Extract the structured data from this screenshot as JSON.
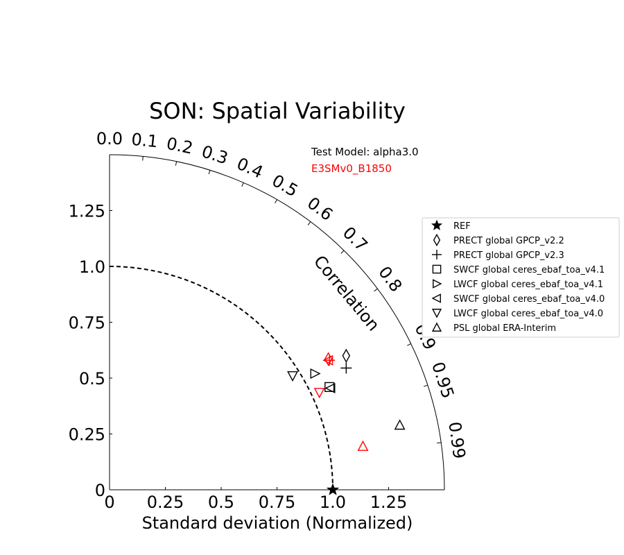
{
  "chart_data": {
    "type": "scatter",
    "title": "SON: Spatial Variability",
    "xlabel": "Standard deviation (Normalized)",
    "annotation_test_model": "Test Model: alpha3.0",
    "annotation_ref_model": "E3SMv0_B1850",
    "ref_model_color": "#ff0000",
    "arc_label": "Correlation",
    "std_max": 1.5,
    "ref_std": 1.0,
    "std_ticks": [
      "0",
      "0.25",
      "0.5",
      "0.75",
      "1.0",
      "1.25"
    ],
    "corr_ticks": [
      "0.0",
      "0.1",
      "0.2",
      "0.3",
      "0.4",
      "0.5",
      "0.6",
      "0.7",
      "0.8",
      "0.9",
      "0.95",
      "0.99"
    ],
    "legend_placement": "right",
    "legend": [
      {
        "label": "REF",
        "marker": "star"
      },
      {
        "label": "PRECT global GPCP_v2.2",
        "marker": "diamond"
      },
      {
        "label": "PRECT global GPCP_v2.3",
        "marker": "plus"
      },
      {
        "label": "SWCF global ceres_ebaf_toa_v4.1",
        "marker": "square"
      },
      {
        "label": "LWCF global ceres_ebaf_toa_v4.1",
        "marker": "triangle-right"
      },
      {
        "label": "SWCF global ceres_ebaf_toa_v4.0",
        "marker": "triangle-left"
      },
      {
        "label": "LWCF global ceres_ebaf_toa_v4.0",
        "marker": "triangle-down"
      },
      {
        "label": "PSL global ERA-Interim",
        "marker": "triangle-up"
      }
    ],
    "series": [
      {
        "model": "test",
        "color": "#000000",
        "points": [
          {
            "marker": "star",
            "x": 1.0,
            "y": 0.0
          },
          {
            "marker": "diamond",
            "x": 1.06,
            "y": 0.6
          },
          {
            "marker": "plus",
            "x": 1.06,
            "y": 0.545
          },
          {
            "marker": "square",
            "x": 0.985,
            "y": 0.46
          },
          {
            "marker": "triangle-right",
            "x": 0.92,
            "y": 0.52
          },
          {
            "marker": "triangle-left",
            "x": 0.99,
            "y": 0.455
          },
          {
            "marker": "triangle-down",
            "x": 0.82,
            "y": 0.51
          },
          {
            "marker": "triangle-up",
            "x": 1.3,
            "y": 0.29
          }
        ]
      },
      {
        "model": "reference",
        "color": "#ff0000",
        "points": [
          {
            "marker": "diamond",
            "x": 0.98,
            "y": 0.585
          },
          {
            "marker": "plus",
            "x": 0.985,
            "y": 0.58
          },
          {
            "marker": "triangle-left",
            "x": 0.98,
            "y": 0.58
          },
          {
            "marker": "triangle-down",
            "x": 0.94,
            "y": 0.435
          },
          {
            "marker": "triangle-up",
            "x": 1.135,
            "y": 0.195
          }
        ]
      }
    ]
  }
}
